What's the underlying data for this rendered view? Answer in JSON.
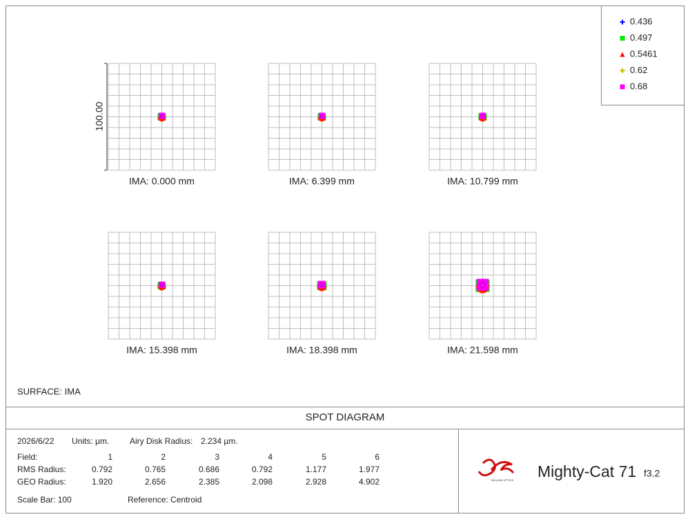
{
  "legend": [
    {
      "label": "0.436",
      "color": "#0000ff",
      "marker": "plus"
    },
    {
      "label": "0.497",
      "color": "#00ee00",
      "marker": "square"
    },
    {
      "label": "0.5461",
      "color": "#ff0000",
      "marker": "triangle"
    },
    {
      "label": "0.62",
      "color": "#bbbb00",
      "marker": "plus"
    },
    {
      "label": "0.68",
      "color": "#ff00ff",
      "marker": "square"
    }
  ],
  "scale_label": "100.00",
  "panels": [
    {
      "label": "IMA: 0.000 mm"
    },
    {
      "label": "IMA: 6.399 mm"
    },
    {
      "label": "IMA: 10.799 mm"
    },
    {
      "label": "IMA: 15.398 mm"
    },
    {
      "label": "IMA: 18.398 mm"
    },
    {
      "label": "IMA: 21.598 mm"
    }
  ],
  "surface": "SURFACE: IMA",
  "title": "SPOT DIAGRAM",
  "info": {
    "date": "2026/6/22",
    "units": "Units: µm.",
    "airy_label": "Airy Disk Radius:",
    "airy_value": "2.234 µm."
  },
  "table": {
    "rows": [
      [
        "Field:",
        "1",
        "2",
        "3",
        "4",
        "5",
        "6"
      ],
      [
        "RMS Radius:",
        "0.792",
        "0.765",
        "0.686",
        "0.792",
        "1.177",
        "1.977"
      ],
      [
        "GEO Radius:",
        "1.920",
        "2.656",
        "2.385",
        "2.098",
        "2.928",
        "4.902"
      ]
    ]
  },
  "scale_bar": "Scale Bar:  100",
  "reference": "Reference: Centroid",
  "logo": {
    "maker": "WILLIAM OPTICS",
    "product": "Mighty-Cat 71",
    "fratio": "f3.2"
  }
}
